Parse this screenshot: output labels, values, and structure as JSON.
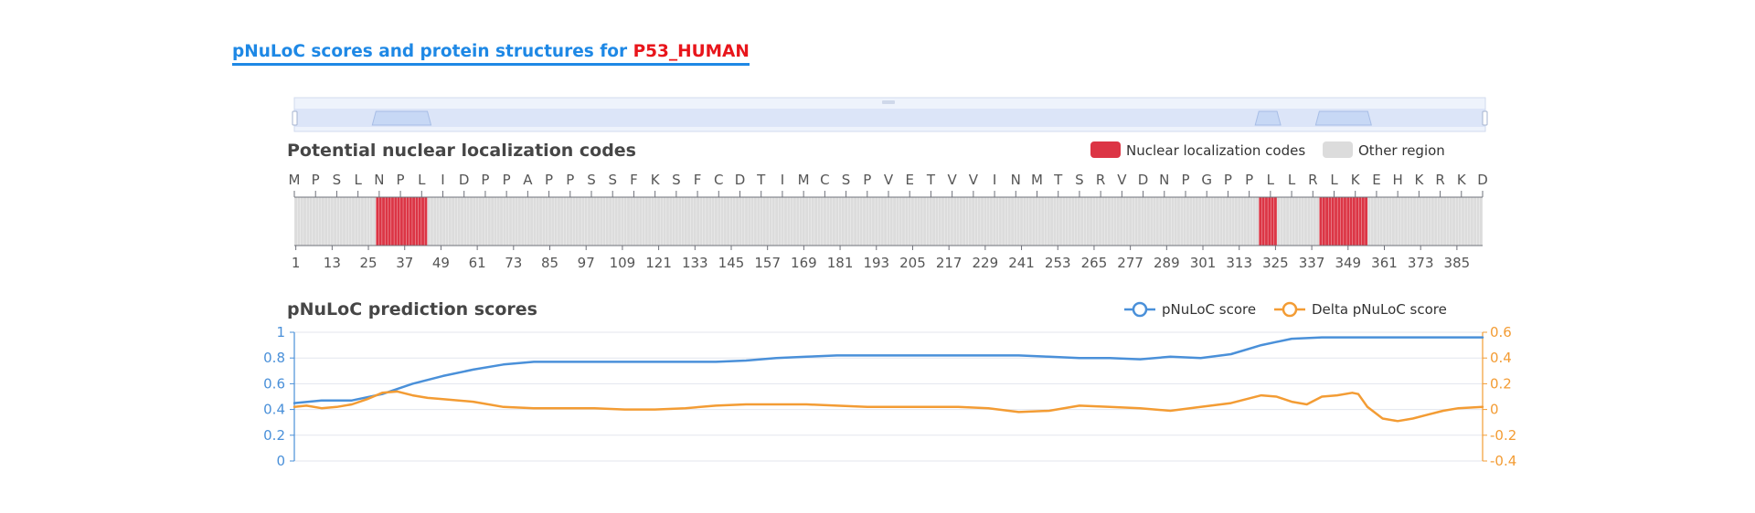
{
  "page": {
    "title": "pNuLoC scores and protein structures for ",
    "protein": "P53_HUMAN"
  },
  "colors": {
    "accent": "#1e88e5",
    "protein_highlight": "#e8151b",
    "nls": "#dc3545",
    "other": "#dcdcdc",
    "score_line": "#4a90d9",
    "delta_line": "#f39c34"
  },
  "chart_data": [
    {
      "type": "heatmap",
      "title": "Potential nuclear localization codes",
      "sequence_length": 393,
      "sequence_letter_ticks": [
        "M",
        "P",
        "S",
        "L",
        "N",
        "P",
        "L",
        "I",
        "D",
        "P",
        "P",
        "A",
        "P",
        "P",
        "S",
        "S",
        "F",
        "K",
        "S",
        "F",
        "C",
        "D",
        "T",
        "I",
        "M",
        "C",
        "S",
        "P",
        "V",
        "E",
        "T",
        "V",
        "V",
        "I",
        "N",
        "M",
        "T",
        "S",
        "R",
        "V",
        "D",
        "N",
        "P",
        "G",
        "P",
        "P",
        "L",
        "L",
        "R",
        "L",
        "K",
        "E",
        "H",
        "K",
        "R",
        "K",
        "D"
      ],
      "position_ticks": [
        1,
        13,
        25,
        37,
        49,
        61,
        73,
        85,
        97,
        109,
        121,
        133,
        145,
        157,
        169,
        181,
        193,
        205,
        217,
        229,
        241,
        253,
        265,
        277,
        289,
        301,
        313,
        325,
        337,
        349,
        361,
        373,
        385
      ],
      "nls_regions": [
        [
          28,
          44
        ],
        [
          320,
          325
        ],
        [
          340,
          355
        ]
      ],
      "legend": [
        "Nuclear localization codes",
        "Other region"
      ],
      "legend_position": "top-right"
    },
    {
      "type": "line",
      "title": "pNuLoC prediction scores",
      "x_range": [
        1,
        393
      ],
      "ylim_left": [
        0,
        1
      ],
      "ylim_right": [
        -0.4,
        0.6
      ],
      "y_ticks_left": [
        "0",
        "0.2",
        "0.4",
        "0.6",
        "0.8",
        "1"
      ],
      "y_ticks_right": [
        "-0.4",
        "-0.2",
        "0",
        "0.2",
        "0.4",
        "0.6"
      ],
      "legend_position": "top-right",
      "series": [
        {
          "name": "pNuLoC score",
          "axis": "left",
          "x": [
            1,
            10,
            20,
            30,
            40,
            50,
            60,
            70,
            80,
            90,
            100,
            110,
            120,
            130,
            140,
            150,
            160,
            170,
            180,
            190,
            200,
            210,
            220,
            230,
            240,
            250,
            260,
            270,
            280,
            290,
            300,
            310,
            320,
            330,
            340,
            350,
            360,
            370,
            380,
            393
          ],
          "y": [
            0.45,
            0.47,
            0.47,
            0.52,
            0.6,
            0.66,
            0.71,
            0.75,
            0.77,
            0.77,
            0.77,
            0.77,
            0.77,
            0.77,
            0.77,
            0.78,
            0.8,
            0.81,
            0.82,
            0.82,
            0.82,
            0.82,
            0.82,
            0.82,
            0.82,
            0.81,
            0.8,
            0.8,
            0.79,
            0.81,
            0.8,
            0.83,
            0.9,
            0.95,
            0.96,
            0.96,
            0.96,
            0.96,
            0.96,
            0.96
          ]
        },
        {
          "name": "Delta pNuLoC score",
          "axis": "right",
          "x": [
            1,
            5,
            10,
            15,
            20,
            25,
            30,
            35,
            40,
            45,
            50,
            60,
            70,
            80,
            90,
            100,
            110,
            120,
            130,
            140,
            150,
            160,
            170,
            180,
            190,
            200,
            210,
            220,
            230,
            240,
            250,
            260,
            270,
            280,
            290,
            300,
            310,
            320,
            325,
            330,
            335,
            340,
            345,
            350,
            352,
            355,
            360,
            365,
            370,
            375,
            380,
            385,
            393
          ],
          "y": [
            0.02,
            0.03,
            0.01,
            0.02,
            0.04,
            0.08,
            0.13,
            0.14,
            0.11,
            0.09,
            0.08,
            0.06,
            0.02,
            0.01,
            0.01,
            0.01,
            0.0,
            0.0,
            0.01,
            0.03,
            0.04,
            0.04,
            0.04,
            0.03,
            0.02,
            0.02,
            0.02,
            0.02,
            0.01,
            -0.02,
            -0.01,
            0.03,
            0.02,
            0.01,
            -0.01,
            0.02,
            0.05,
            0.11,
            0.1,
            0.06,
            0.04,
            0.1,
            0.11,
            0.13,
            0.12,
            0.02,
            -0.07,
            -0.09,
            -0.07,
            -0.04,
            -0.01,
            0.01,
            0.02
          ]
        }
      ]
    }
  ]
}
